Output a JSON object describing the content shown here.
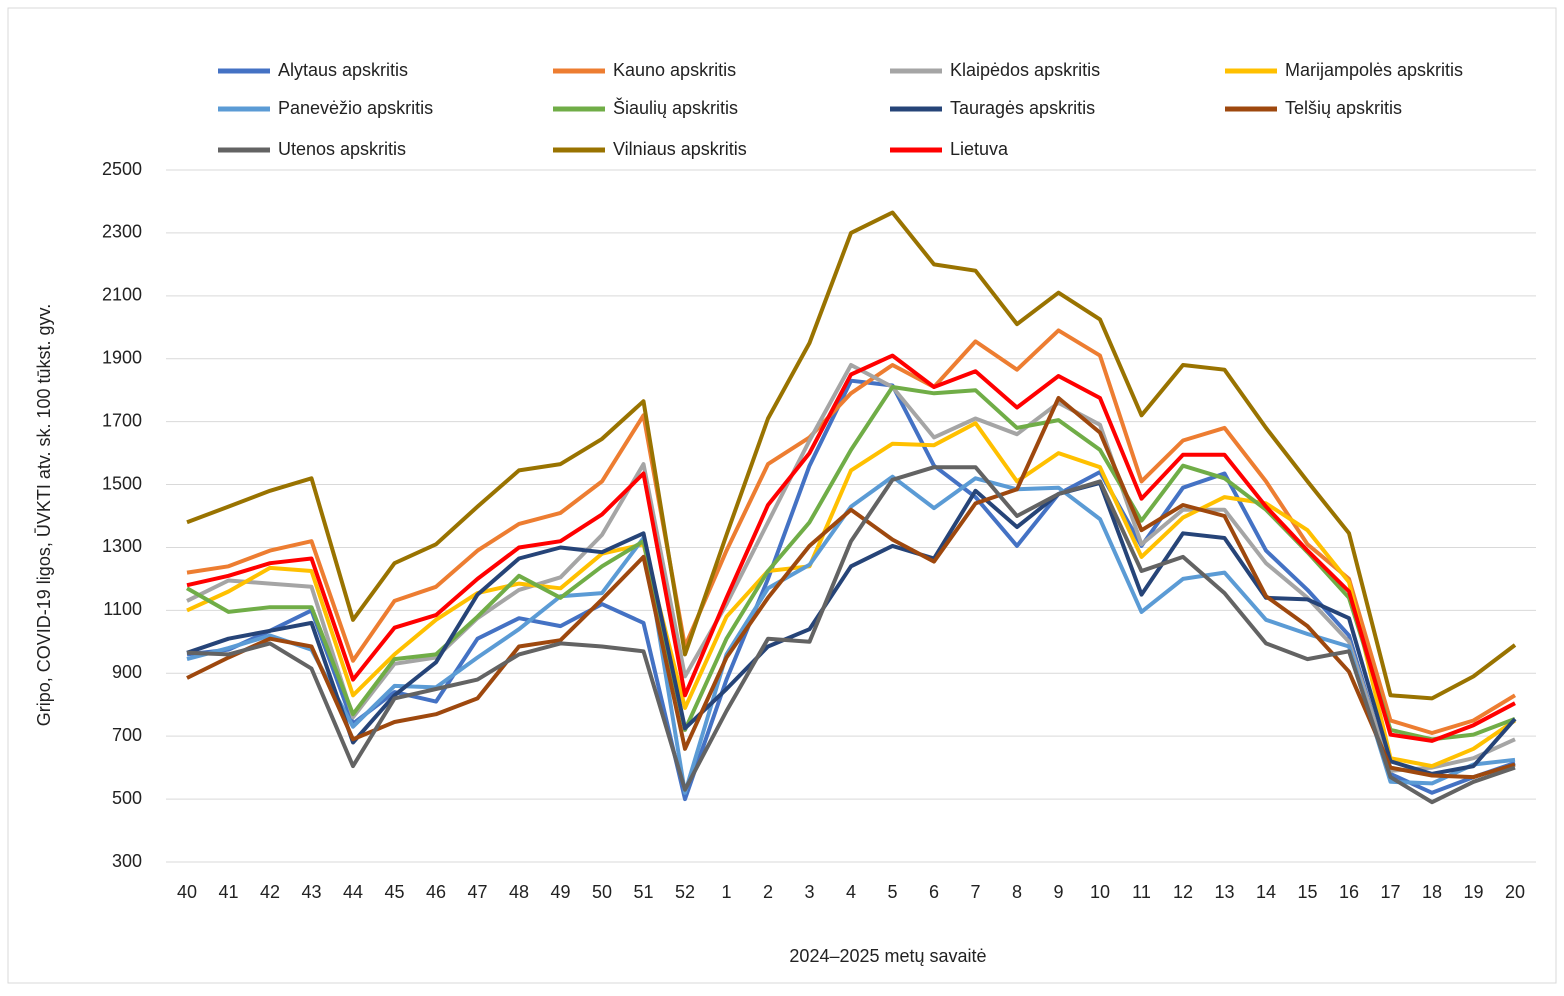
{
  "chart_data": {
    "type": "line",
    "y_label": "Gripo, COVID-19 ligos, ŪVKTI atv. sk. 100 tūkst. gyv.",
    "x_label": "2024–2025 metų savaitė",
    "categories": [
      "40",
      "41",
      "42",
      "43",
      "44",
      "45",
      "46",
      "47",
      "48",
      "49",
      "50",
      "51",
      "52",
      "1",
      "2",
      "3",
      "4",
      "5",
      "6",
      "7",
      "8",
      "9",
      "10",
      "11",
      "12",
      "13",
      "14",
      "15",
      "16",
      "17",
      "18",
      "19",
      "20"
    ],
    "ylim": [
      300,
      2500
    ],
    "yticks": [
      300,
      500,
      700,
      900,
      1100,
      1300,
      1500,
      1700,
      1900,
      2100,
      2300,
      2500
    ],
    "grid": true,
    "series": [
      {
        "name": "Alytaus apskritis",
        "color": "#4472c4",
        "values": [
          960,
          975,
          1035,
          1100,
          740,
          840,
          810,
          1010,
          1075,
          1050,
          1120,
          1060,
          500,
          880,
          1200,
          1560,
          1830,
          1815,
          1560,
          1460,
          1305,
          1470,
          1540,
          1305,
          1490,
          1535,
          1290,
          1165,
          1020,
          580,
          520,
          570,
          615
        ]
      },
      {
        "name": "Kauno apskritis",
        "color": "#ed7d31",
        "values": [
          1220,
          1240,
          1290,
          1320,
          940,
          1130,
          1175,
          1290,
          1375,
          1410,
          1510,
          1720,
          985,
          1290,
          1565,
          1650,
          1790,
          1880,
          1810,
          1955,
          1865,
          1990,
          1910,
          1510,
          1640,
          1680,
          1510,
          1310,
          1200,
          750,
          710,
          750,
          830
        ]
      },
      {
        "name": "Klaipėdos apskritis",
        "color": "#a5a5a5",
        "values": [
          1130,
          1195,
          1185,
          1175,
          760,
          930,
          950,
          1075,
          1165,
          1205,
          1340,
          1565,
          890,
          1120,
          1380,
          1640,
          1880,
          1810,
          1650,
          1710,
          1660,
          1760,
          1690,
          1310,
          1420,
          1420,
          1250,
          1140,
          1000,
          590,
          600,
          630,
          690
        ]
      },
      {
        "name": "Marijampolės apskritis",
        "color": "#ffc000",
        "values": [
          1100,
          1160,
          1235,
          1225,
          830,
          960,
          1070,
          1155,
          1185,
          1170,
          1280,
          1310,
          790,
          1080,
          1225,
          1240,
          1545,
          1630,
          1625,
          1695,
          1510,
          1600,
          1555,
          1270,
          1395,
          1460,
          1440,
          1355,
          1190,
          630,
          605,
          660,
          750
        ]
      },
      {
        "name": "Panevėžio apskritis",
        "color": "#5b9bd5",
        "values": [
          945,
          980,
          1020,
          975,
          730,
          860,
          855,
          950,
          1040,
          1145,
          1155,
          1330,
          520,
          960,
          1170,
          1245,
          1430,
          1525,
          1425,
          1520,
          1485,
          1490,
          1390,
          1095,
          1200,
          1220,
          1070,
          1025,
          985,
          555,
          550,
          610,
          625
        ]
      },
      {
        "name": "Šiaulių apskritis",
        "color": "#70ad47",
        "values": [
          1170,
          1095,
          1110,
          1110,
          770,
          945,
          960,
          1080,
          1210,
          1140,
          1240,
          1320,
          720,
          1010,
          1225,
          1380,
          1610,
          1810,
          1790,
          1800,
          1680,
          1705,
          1610,
          1385,
          1560,
          1520,
          1420,
          1285,
          1140,
          720,
          690,
          705,
          755
        ]
      },
      {
        "name": "Tauragės apskritis",
        "color": "#264478",
        "values": [
          965,
          1010,
          1035,
          1060,
          680,
          830,
          935,
          1150,
          1265,
          1300,
          1285,
          1345,
          725,
          850,
          985,
          1040,
          1240,
          1305,
          1265,
          1480,
          1365,
          1470,
          1505,
          1150,
          1345,
          1330,
          1140,
          1135,
          1075,
          620,
          580,
          605,
          755
        ]
      },
      {
        "name": "Telšių apskritis",
        "color": "#9e480e",
        "values": [
          885,
          950,
          1010,
          985,
          690,
          745,
          770,
          820,
          985,
          1005,
          1135,
          1270,
          660,
          950,
          1140,
          1305,
          1420,
          1325,
          1255,
          1440,
          1485,
          1775,
          1665,
          1355,
          1435,
          1400,
          1145,
          1050,
          905,
          600,
          575,
          570,
          610
        ]
      },
      {
        "name": "Utenos apskritis",
        "color": "#636363",
        "values": [
          965,
          960,
          995,
          915,
          605,
          820,
          850,
          880,
          960,
          995,
          985,
          970,
          530,
          780,
          1010,
          1000,
          1320,
          1515,
          1555,
          1555,
          1400,
          1470,
          1510,
          1225,
          1270,
          1155,
          995,
          945,
          970,
          570,
          490,
          555,
          600
        ]
      },
      {
        "name": "Vilniaus apskritis",
        "color": "#997300",
        "values": [
          1380,
          1430,
          1480,
          1520,
          1070,
          1250,
          1310,
          1430,
          1545,
          1565,
          1645,
          1765,
          960,
          1340,
          1710,
          1950,
          2300,
          2365,
          2200,
          2180,
          2010,
          2110,
          2025,
          1720,
          1880,
          1865,
          1680,
          1510,
          1345,
          830,
          820,
          890,
          990
        ]
      },
      {
        "name": "Lietuva",
        "color": "#ff0000",
        "values": [
          1180,
          1210,
          1250,
          1265,
          880,
          1045,
          1085,
          1200,
          1300,
          1320,
          1405,
          1535,
          830,
          1140,
          1435,
          1600,
          1850,
          1910,
          1810,
          1860,
          1745,
          1845,
          1775,
          1455,
          1595,
          1595,
          1430,
          1290,
          1160,
          705,
          685,
          735,
          805
        ]
      }
    ]
  }
}
